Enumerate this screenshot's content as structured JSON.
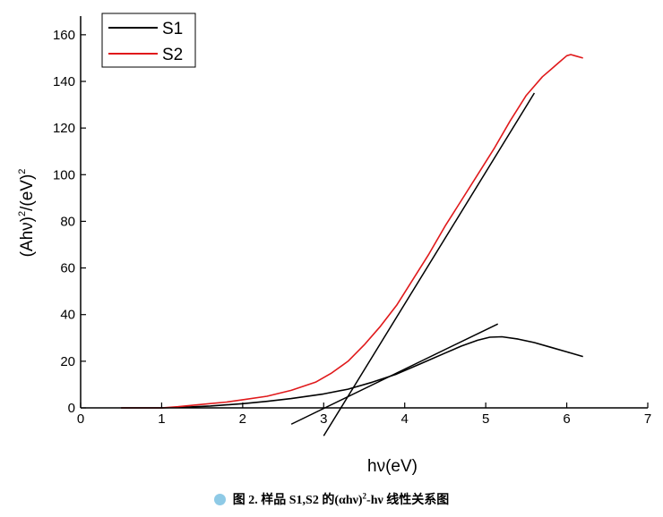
{
  "chart_data": {
    "type": "line",
    "xlabel_base": "hν(eV)",
    "ylabel": {
      "a": "(Ahν)",
      "a_sup": "2",
      "b": "/(eV)",
      "b_sup": "2"
    },
    "xlim": [
      0,
      7
    ],
    "ylim": [
      0,
      168
    ],
    "x_ticks": [
      0,
      1,
      2,
      3,
      4,
      5,
      6,
      7
    ],
    "y_ticks": [
      0,
      20,
      40,
      60,
      80,
      100,
      120,
      140,
      160
    ],
    "grid": false,
    "legend_placement": "top-left",
    "series": [
      {
        "name": "S1",
        "color": "#000000",
        "x": [
          0.5,
          1.0,
          1.3,
          1.6,
          2.0,
          2.3,
          2.6,
          3.0,
          3.3,
          3.6,
          3.9,
          4.2,
          4.5,
          4.7,
          4.9,
          5.05,
          5.2,
          5.4,
          5.6,
          5.8,
          6.0,
          6.2
        ],
        "y": [
          0,
          0,
          0.3,
          0.8,
          1.8,
          2.8,
          4.0,
          6.0,
          8.0,
          11.0,
          14.5,
          19.0,
          23.5,
          26.5,
          29.0,
          30.3,
          30.5,
          29.5,
          28.0,
          26.0,
          24.0,
          22.0
        ]
      },
      {
        "name": "S2",
        "color": "#e0191b",
        "x": [
          0.5,
          1.0,
          1.2,
          1.5,
          1.8,
          2.0,
          2.3,
          2.6,
          2.9,
          3.1,
          3.3,
          3.5,
          3.7,
          3.9,
          4.1,
          4.3,
          4.5,
          4.7,
          4.9,
          5.1,
          5.3,
          5.5,
          5.7,
          5.8,
          5.9,
          6.0,
          6.05,
          6.1,
          6.2
        ],
        "y": [
          0,
          0,
          0.5,
          1.5,
          2.5,
          3.5,
          5.0,
          7.5,
          11.0,
          15.0,
          20.0,
          27.0,
          35.0,
          44.0,
          55.0,
          66.0,
          78.0,
          89.0,
          100.0,
          111.0,
          123.0,
          134.0,
          142.0,
          145.0,
          148.0,
          151.0,
          151.5,
          151.0,
          150.0
        ]
      }
    ],
    "tangent_lines": [
      {
        "x1": 2.6,
        "y1": -7,
        "x2": 5.15,
        "y2": 36
      },
      {
        "x1": 3.0,
        "y1": -12,
        "x2": 5.6,
        "y2": 135
      }
    ]
  },
  "caption": {
    "prefix": "图 2. 样品 S1,S2 的(αhν)",
    "sup": "2",
    "suffix": "-hν 线性关系图"
  }
}
